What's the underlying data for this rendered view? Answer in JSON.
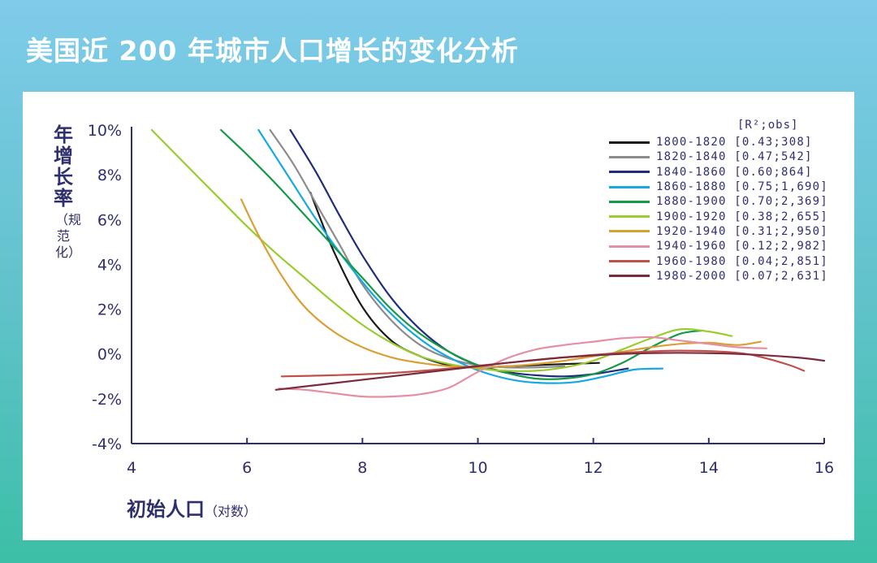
{
  "title": "美国近 200 年城市人口增长的变化分析",
  "chart_data": {
    "type": "line",
    "title": "美国近 200 年城市人口增长的变化分析",
    "ylabel_main": "年增长率",
    "ylabel_sub": "（规范化）",
    "xlabel_main": "初始人口",
    "xlabel_sub": "（对数）",
    "xlim": [
      4,
      16
    ],
    "ylim": [
      -4,
      10
    ],
    "x_ticks": [
      4,
      6,
      8,
      10,
      12,
      14,
      16
    ],
    "y_ticks": [
      10,
      8,
      6,
      4,
      2,
      0,
      -2,
      -4
    ],
    "y_tick_labels": [
      "10%",
      "8%",
      "6%",
      "4%",
      "2%",
      "0%",
      "-2%",
      "-4%"
    ],
    "grid": false,
    "legend_header": "[R²;obs]",
    "legend_position": "top-right",
    "series": [
      {
        "name": "1800-1820",
        "stats": "[0.43;308]",
        "color": "#1a1a1a",
        "x": [
          7.1,
          7.5,
          8.0,
          8.5,
          9.0,
          9.5,
          10.0,
          10.5,
          11.0,
          11.5,
          12.1
        ],
        "y": [
          7.2,
          4.6,
          2.1,
          0.6,
          -0.1,
          -0.5,
          -0.6,
          -0.55,
          -0.5,
          -0.45,
          -0.4
        ]
      },
      {
        "name": "1820-1840",
        "stats": "[0.47;542]",
        "color": "#8c8c8c",
        "x": [
          6.4,
          6.8,
          7.2,
          7.6,
          8.0,
          8.5,
          9.0,
          9.5,
          10.0,
          10.5,
          11.0,
          11.5
        ],
        "y": [
          10.0,
          8.5,
          6.7,
          4.9,
          3.1,
          1.5,
          0.4,
          -0.2,
          -0.5,
          -0.6,
          -0.6,
          -0.55
        ]
      },
      {
        "name": "1840-1860",
        "stats": "[0.60;864]",
        "color": "#1f2d7a",
        "x": [
          6.75,
          7.2,
          7.6,
          8.0,
          8.5,
          9.0,
          9.5,
          10.0,
          10.5,
          11.0,
          11.5,
          12.0,
          12.6
        ],
        "y": [
          10.0,
          8.1,
          6.2,
          4.4,
          2.5,
          1.1,
          0.1,
          -0.5,
          -0.8,
          -0.95,
          -1.0,
          -0.9,
          -0.65
        ]
      },
      {
        "name": "1860-1880",
        "stats": "[0.75;1,690]",
        "color": "#16a8e0",
        "x": [
          6.2,
          6.7,
          7.2,
          7.7,
          8.2,
          8.7,
          9.2,
          9.7,
          10.2,
          10.7,
          11.2,
          11.7,
          12.2,
          12.7,
          13.2
        ],
        "y": [
          10.0,
          8.0,
          6.0,
          4.2,
          2.6,
          1.3,
          0.3,
          -0.4,
          -0.9,
          -1.2,
          -1.3,
          -1.25,
          -1.0,
          -0.7,
          -0.65
        ]
      },
      {
        "name": "1880-1900",
        "stats": "[0.70;2,369]",
        "color": "#149a48",
        "x": [
          5.55,
          6.0,
          6.5,
          7.0,
          7.5,
          8.0,
          8.5,
          9.0,
          9.5,
          10.0,
          10.5,
          11.0,
          11.5,
          12.0,
          12.5,
          13.0,
          13.5,
          13.9
        ],
        "y": [
          10.0,
          8.9,
          7.6,
          6.2,
          4.8,
          3.4,
          2.0,
          0.9,
          0.1,
          -0.5,
          -0.85,
          -1.1,
          -1.1,
          -0.9,
          -0.4,
          0.3,
          0.9,
          1.05
        ]
      },
      {
        "name": "1900-1920",
        "stats": "[0.38;2,655]",
        "color": "#9bcb2e",
        "x": [
          4.35,
          5.0,
          5.5,
          6.0,
          6.5,
          7.0,
          7.5,
          8.0,
          8.5,
          9.0,
          9.5,
          10.0,
          10.5,
          11.0,
          11.5,
          12.0,
          12.5,
          13.0,
          13.5,
          14.0,
          14.4
        ],
        "y": [
          10.0,
          8.3,
          7.0,
          5.7,
          4.5,
          3.4,
          2.3,
          1.3,
          0.5,
          -0.1,
          -0.45,
          -0.65,
          -0.75,
          -0.75,
          -0.6,
          -0.3,
          0.2,
          0.7,
          1.1,
          1.0,
          0.8
        ]
      },
      {
        "name": "1920-1940",
        "stats": "[0.31;2,950]",
        "color": "#d9a033",
        "x": [
          5.9,
          6.2,
          6.6,
          7.0,
          7.5,
          8.0,
          8.5,
          9.0,
          9.5,
          10.0,
          10.5,
          11.0,
          11.5,
          12.0,
          12.5,
          13.0,
          13.5,
          14.0,
          14.5,
          14.9
        ],
        "y": [
          6.9,
          5.3,
          3.5,
          2.1,
          1.0,
          0.3,
          -0.15,
          -0.4,
          -0.55,
          -0.6,
          -0.55,
          -0.45,
          -0.3,
          -0.1,
          0.1,
          0.3,
          0.45,
          0.5,
          0.4,
          0.55
        ]
      },
      {
        "name": "1940-1960",
        "stats": "[0.12;2,982]",
        "color": "#e58fa4",
        "x": [
          6.55,
          7.0,
          7.5,
          8.0,
          8.5,
          9.0,
          9.5,
          10.0,
          10.5,
          11.0,
          11.5,
          12.0,
          12.5,
          13.0,
          13.5,
          14.0,
          14.5,
          15.0
        ],
        "y": [
          -1.55,
          -1.6,
          -1.75,
          -1.9,
          -1.9,
          -1.8,
          -1.5,
          -0.8,
          -0.2,
          0.2,
          0.4,
          0.55,
          0.7,
          0.75,
          0.6,
          0.45,
          0.3,
          0.25
        ]
      },
      {
        "name": "1960-1980",
        "stats": "[0.04;2,851]",
        "color": "#c0504a",
        "x": [
          6.6,
          7.5,
          8.5,
          9.5,
          10.5,
          11.5,
          12.5,
          13.5,
          14.5,
          15.0,
          15.4,
          15.65
        ],
        "y": [
          -1.0,
          -0.95,
          -0.85,
          -0.65,
          -0.4,
          -0.15,
          0.05,
          0.15,
          0.05,
          -0.2,
          -0.5,
          -0.75
        ]
      },
      {
        "name": "1980-2000",
        "stats": "[0.07;2,631]",
        "color": "#7a2c3e",
        "x": [
          6.5,
          7.5,
          8.5,
          9.5,
          10.5,
          11.5,
          12.5,
          13.5,
          14.5,
          15.5,
          16.0
        ],
        "y": [
          -1.6,
          -1.3,
          -1.0,
          -0.7,
          -0.4,
          -0.15,
          0.0,
          0.05,
          0.0,
          -0.15,
          -0.3
        ]
      }
    ]
  }
}
